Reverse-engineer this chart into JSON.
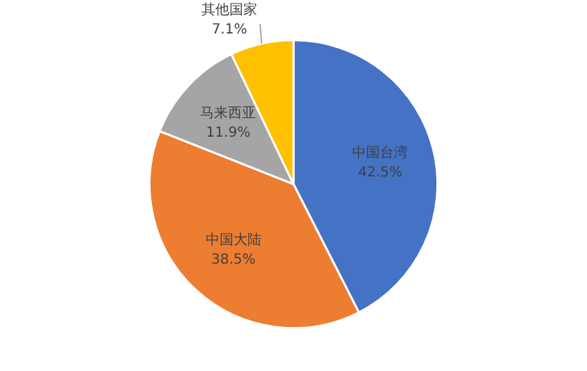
{
  "chart_data": {
    "type": "pie",
    "categories": [
      "中国台湾",
      "中国大陆",
      "马来西亚",
      "其他国家"
    ],
    "values": [
      42.5,
      38.5,
      11.9,
      7.1
    ],
    "value_labels": [
      "42.5%",
      "38.5%",
      "11.9%",
      "7.1%"
    ],
    "colors": [
      "#4472c4",
      "#ed7d31",
      "#a5a5a5",
      "#ffc000"
    ],
    "legend": false
  }
}
